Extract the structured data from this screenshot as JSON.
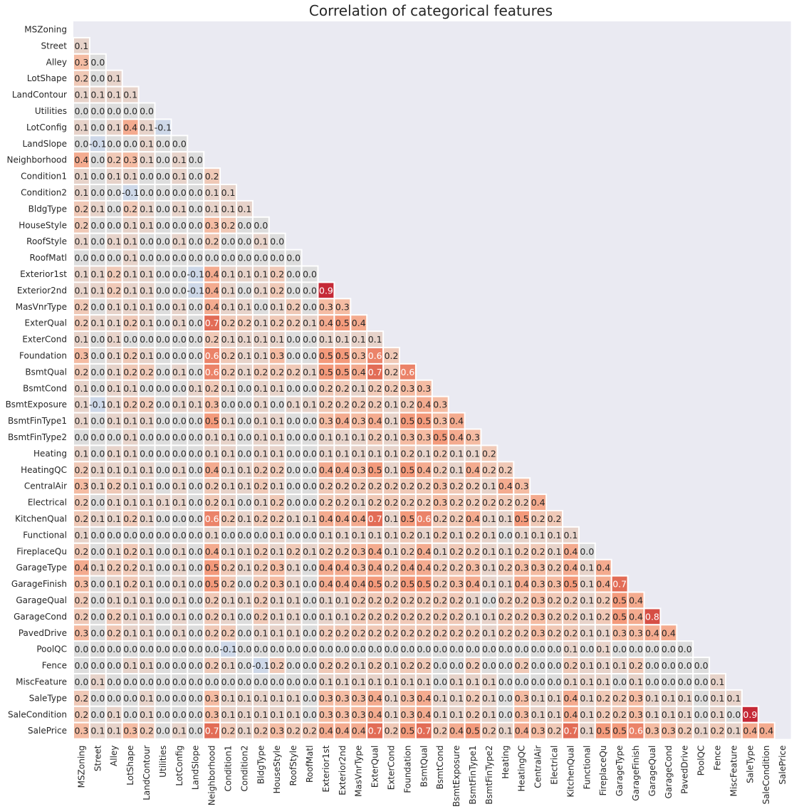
{
  "chart_data": {
    "type": "heatmap",
    "title": "Correlation of categorical features",
    "colormap": "coolwarm",
    "value_range": [
      -1,
      1
    ],
    "mask": "upper-triangle-including-diagonal",
    "colorbar": false,
    "background_color": "#eaeaf2",
    "cell_border_color": "#ffffff",
    "labels": [
      "MSZoning",
      "Street",
      "Alley",
      "LotShape",
      "LandContour",
      "Utilities",
      "LotConfig",
      "LandSlope",
      "Neighborhood",
      "Condition1",
      "Condition2",
      "BldgType",
      "HouseStyle",
      "RoofStyle",
      "RoofMatl",
      "Exterior1st",
      "Exterior2nd",
      "MasVnrType",
      "ExterQual",
      "ExterCond",
      "Foundation",
      "BsmtQual",
      "BsmtCond",
      "BsmtExposure",
      "BsmtFinType1",
      "BsmtFinType2",
      "Heating",
      "HeatingQC",
      "CentralAir",
      "Electrical",
      "KitchenQual",
      "Functional",
      "FireplaceQu",
      "GarageType",
      "GarageFinish",
      "GarageQual",
      "GarageCond",
      "PavedDrive",
      "PoolQC",
      "Fence",
      "MiscFeature",
      "SaleType",
      "SaleCondition",
      "SalePrice"
    ],
    "rows": [
      [],
      [
        0.1
      ],
      [
        0.3,
        -0.0
      ],
      [
        0.2,
        0.0,
        0.1
      ],
      [
        0.1,
        0.1,
        0.1,
        0.1
      ],
      [
        -0.0,
        -0.0,
        -0.0,
        -0.0,
        0.0
      ],
      [
        0.1,
        0.0,
        0.1,
        0.4,
        0.1,
        -0.1
      ],
      [
        -0.0,
        -0.1,
        0.0,
        0.0,
        0.1,
        0.0,
        -0.0
      ],
      [
        0.4,
        0.0,
        0.2,
        0.3,
        0.1,
        -0.0,
        0.1,
        -0.0
      ],
      [
        0.1,
        -0.0,
        0.1,
        0.1,
        0.0,
        -0.0,
        0.1,
        -0.0,
        0.2
      ],
      [
        0.1,
        -0.0,
        -0.0,
        -0.1,
        -0.0,
        -0.0,
        -0.0,
        -0.0,
        0.1,
        0.1
      ],
      [
        0.2,
        0.1,
        0.0,
        0.2,
        0.1,
        0.0,
        0.1,
        0.0,
        0.1,
        0.1,
        0.1
      ],
      [
        0.2,
        0.0,
        0.0,
        0.1,
        0.1,
        0.0,
        0.0,
        0.0,
        0.3,
        0.2,
        0.0,
        -0.0
      ],
      [
        0.1,
        -0.0,
        0.1,
        0.1,
        0.0,
        0.0,
        0.1,
        -0.0,
        0.2,
        0.0,
        0.0,
        0.1,
        0.0
      ],
      [
        0.0,
        0.0,
        0.0,
        0.1,
        0.0,
        0.0,
        -0.0,
        0.0,
        0.0,
        -0.0,
        0.0,
        0.0,
        0.0,
        0.0
      ],
      [
        0.1,
        0.1,
        0.2,
        0.1,
        0.1,
        0.0,
        0.0,
        -0.1,
        0.4,
        0.1,
        0.1,
        0.1,
        0.2,
        0.0,
        -0.0
      ],
      [
        0.1,
        0.1,
        0.2,
        0.1,
        0.1,
        0.0,
        0.0,
        -0.1,
        0.4,
        0.1,
        0.0,
        0.1,
        0.2,
        0.0,
        -0.0,
        0.9
      ],
      [
        0.2,
        0.0,
        0.1,
        0.1,
        0.1,
        -0.0,
        0.1,
        -0.0,
        0.4,
        0.1,
        0.1,
        -0.0,
        0.1,
        0.2,
        -0.0,
        0.3,
        0.3
      ],
      [
        0.2,
        0.1,
        0.1,
        0.2,
        0.1,
        0.0,
        0.1,
        -0.0,
        0.7,
        0.2,
        0.2,
        0.1,
        0.2,
        0.2,
        0.1,
        0.4,
        0.5,
        0.4
      ],
      [
        0.1,
        -0.0,
        0.1,
        0.0,
        0.0,
        -0.0,
        0.0,
        0.0,
        0.2,
        0.1,
        0.1,
        0.1,
        0.1,
        0.0,
        0.0,
        0.1,
        0.1,
        0.1,
        0.1
      ],
      [
        0.3,
        0.0,
        0.1,
        0.2,
        0.1,
        0.0,
        0.0,
        -0.0,
        0.6,
        0.2,
        0.1,
        0.1,
        0.3,
        0.0,
        -0.0,
        0.5,
        0.5,
        0.3,
        0.6,
        0.2
      ],
      [
        0.2,
        0.0,
        0.1,
        0.2,
        0.2,
        0.0,
        0.1,
        0.0,
        0.6,
        0.2,
        0.1,
        0.2,
        0.2,
        0.2,
        0.1,
        0.5,
        0.5,
        0.4,
        0.7,
        0.2,
        0.6
      ],
      [
        0.1,
        -0.0,
        0.1,
        0.1,
        0.0,
        -0.0,
        0.0,
        0.1,
        0.2,
        0.1,
        0.0,
        0.1,
        0.1,
        -0.0,
        0.0,
        0.2,
        0.2,
        0.1,
        0.2,
        0.2,
        0.3,
        0.3
      ],
      [
        0.1,
        -0.1,
        0.1,
        0.2,
        0.2,
        0.0,
        0.1,
        0.1,
        0.3,
        0.0,
        0.0,
        0.1,
        -0.0,
        0.1,
        0.1,
        0.2,
        0.2,
        0.2,
        0.2,
        0.1,
        0.2,
        0.4,
        0.3
      ],
      [
        0.1,
        0.0,
        0.1,
        0.1,
        0.1,
        -0.0,
        0.0,
        0.0,
        0.5,
        0.1,
        0.0,
        0.1,
        0.1,
        0.0,
        0.0,
        0.3,
        0.4,
        0.3,
        0.4,
        0.1,
        0.5,
        0.5,
        0.3,
        0.4
      ],
      [
        -0.0,
        -0.0,
        -0.0,
        0.1,
        0.0,
        0.0,
        0.0,
        -0.0,
        0.1,
        0.1,
        0.0,
        0.1,
        0.1,
        -0.0,
        -0.0,
        0.1,
        0.1,
        0.1,
        0.2,
        0.1,
        0.3,
        0.3,
        0.5,
        0.4,
        0.3
      ],
      [
        0.1,
        -0.0,
        0.1,
        0.1,
        0.0,
        -0.0,
        0.0,
        -0.0,
        0.1,
        0.1,
        -0.0,
        0.1,
        0.1,
        0.0,
        0.0,
        0.1,
        0.1,
        0.1,
        0.1,
        0.1,
        0.2,
        0.1,
        0.2,
        0.1,
        0.1,
        0.2
      ],
      [
        0.2,
        0.1,
        0.1,
        0.1,
        0.1,
        0.0,
        0.1,
        -0.0,
        0.4,
        0.1,
        0.1,
        0.2,
        0.2,
        0.0,
        -0.0,
        0.4,
        0.4,
        0.3,
        0.5,
        0.1,
        0.5,
        0.4,
        0.2,
        0.1,
        0.4,
        0.2,
        0.2
      ],
      [
        0.3,
        0.1,
        0.2,
        0.1,
        0.1,
        -0.0,
        0.1,
        -0.0,
        0.2,
        0.1,
        0.1,
        0.2,
        0.1,
        0.0,
        0.0,
        0.2,
        0.2,
        0.2,
        0.2,
        0.2,
        0.2,
        0.2,
        0.3,
        0.2,
        0.2,
        0.1,
        0.4,
        0.3
      ],
      [
        0.2,
        0.0,
        0.1,
        0.1,
        0.1,
        0.1,
        0.1,
        -0.0,
        0.2,
        0.1,
        0.0,
        0.1,
        0.2,
        0.0,
        0.0,
        0.2,
        0.2,
        0.1,
        0.2,
        0.2,
        0.2,
        0.2,
        0.3,
        0.2,
        0.2,
        0.2,
        0.2,
        0.2,
        0.4
      ],
      [
        0.2,
        0.1,
        0.1,
        0.2,
        0.1,
        -0.0,
        0.0,
        -0.0,
        0.6,
        0.2,
        0.1,
        0.2,
        0.2,
        0.1,
        0.1,
        0.4,
        0.4,
        0.4,
        0.7,
        0.1,
        0.5,
        0.6,
        0.2,
        0.2,
        0.4,
        0.1,
        0.1,
        0.5,
        0.2,
        0.2
      ],
      [
        0.1,
        -0.0,
        0.0,
        0.0,
        0.0,
        -0.0,
        -0.0,
        -0.0,
        0.1,
        0.0,
        -0.0,
        -0.0,
        0.1,
        -0.0,
        0.0,
        0.1,
        0.1,
        0.1,
        0.1,
        0.1,
        0.2,
        0.1,
        0.2,
        0.1,
        0.2,
        0.1,
        0.0,
        0.1,
        0.1,
        0.1,
        0.1
      ],
      [
        0.2,
        0.0,
        0.1,
        0.2,
        0.1,
        -0.0,
        0.1,
        0.0,
        0.4,
        0.1,
        0.1,
        0.2,
        0.1,
        0.2,
        0.1,
        0.2,
        0.2,
        0.3,
        0.4,
        0.1,
        0.2,
        0.4,
        0.1,
        0.2,
        0.2,
        0.1,
        0.1,
        0.2,
        0.2,
        0.1,
        0.4,
        0.0
      ],
      [
        0.4,
        0.1,
        0.2,
        0.2,
        0.1,
        0.0,
        0.1,
        -0.0,
        0.5,
        0.2,
        0.1,
        0.2,
        0.3,
        0.1,
        0.0,
        0.4,
        0.4,
        0.3,
        0.4,
        0.2,
        0.4,
        0.4,
        0.2,
        0.2,
        0.3,
        0.1,
        0.2,
        0.3,
        0.3,
        0.2,
        0.4,
        0.1,
        0.4
      ],
      [
        0.3,
        0.0,
        0.1,
        0.2,
        0.1,
        -0.0,
        0.1,
        -0.0,
        0.5,
        0.2,
        0.0,
        0.2,
        0.3,
        0.1,
        0.0,
        0.4,
        0.4,
        0.4,
        0.5,
        0.2,
        0.5,
        0.5,
        0.2,
        0.3,
        0.4,
        0.1,
        0.1,
        0.4,
        0.3,
        0.3,
        0.5,
        0.1,
        0.4,
        0.7
      ],
      [
        0.2,
        0.0,
        0.1,
        0.1,
        0.1,
        -0.0,
        0.1,
        -0.0,
        0.2,
        0.1,
        0.1,
        0.2,
        0.1,
        0.1,
        0.0,
        0.1,
        0.1,
        0.2,
        0.2,
        0.2,
        0.2,
        0.2,
        0.2,
        0.2,
        0.1,
        0.0,
        0.2,
        0.2,
        0.3,
        0.2,
        0.2,
        0.1,
        0.2,
        0.5,
        0.4
      ],
      [
        0.2,
        0.0,
        0.2,
        0.1,
        0.1,
        -0.0,
        0.1,
        -0.0,
        0.2,
        0.1,
        0.0,
        0.2,
        0.1,
        0.1,
        0.0,
        0.1,
        0.1,
        0.2,
        0.2,
        0.2,
        0.2,
        0.2,
        0.2,
        0.2,
        0.1,
        0.1,
        0.2,
        0.2,
        0.3,
        0.2,
        0.2,
        0.1,
        0.2,
        0.5,
        0.4,
        0.8
      ],
      [
        0.3,
        0.0,
        0.2,
        0.1,
        0.1,
        -0.0,
        0.1,
        -0.0,
        0.2,
        0.2,
        0.0,
        0.1,
        0.1,
        0.1,
        0.0,
        0.2,
        0.2,
        0.2,
        0.2,
        0.2,
        0.2,
        0.2,
        0.2,
        0.2,
        0.2,
        0.1,
        0.2,
        0.2,
        0.3,
        0.2,
        0.2,
        0.1,
        0.1,
        0.3,
        0.3,
        0.4,
        0.4
      ],
      [
        0.0,
        0.0,
        0.0,
        0.0,
        -0.0,
        -0.0,
        0.0,
        -0.0,
        -0.0,
        -0.1,
        0.0,
        0.0,
        0.0,
        0.0,
        -0.0,
        -0.0,
        -0.0,
        -0.0,
        -0.0,
        -0.0,
        0.0,
        0.0,
        0.0,
        0.0,
        0.0,
        -0.0,
        -0.0,
        -0.0,
        0.0,
        0.0,
        0.1,
        0.0,
        0.1,
        -0.0,
        0.0,
        0.0,
        0.0,
        0.0
      ],
      [
        0.0,
        -0.0,
        0.0,
        0.1,
        0.1,
        -0.0,
        0.0,
        -0.0,
        0.2,
        0.1,
        0.0,
        -0.1,
        0.2,
        0.0,
        -0.0,
        0.2,
        0.2,
        0.1,
        0.2,
        0.1,
        0.2,
        0.2,
        -0.0,
        0.0,
        0.2,
        0.0,
        0.0,
        0.2,
        -0.0,
        -0.0,
        0.2,
        0.1,
        0.1,
        0.1,
        0.2,
        0.0,
        0.0,
        0.0,
        -0.0
      ],
      [
        0.0,
        0.1,
        0.0,
        0.0,
        0.0,
        -0.0,
        -0.0,
        -0.0,
        -0.0,
        0.0,
        0.0,
        0.0,
        -0.0,
        -0.0,
        0.0,
        0.1,
        0.1,
        0.1,
        0.1,
        0.1,
        0.1,
        0.1,
        0.0,
        0.1,
        0.1,
        0.1,
        -0.0,
        0.0,
        -0.0,
        -0.0,
        0.1,
        0.1,
        0.1,
        0.0,
        0.1,
        0.0,
        0.0,
        0.0,
        0.0,
        0.1
      ],
      [
        0.2,
        0.0,
        0.0,
        0.0,
        0.1,
        0.0,
        -0.0,
        0.0,
        0.3,
        0.1,
        0.1,
        0.1,
        0.1,
        0.1,
        -0.0,
        0.3,
        0.3,
        0.3,
        0.4,
        0.1,
        0.3,
        0.4,
        0.1,
        0.1,
        0.2,
        0.1,
        0.0,
        0.3,
        0.1,
        0.1,
        0.4,
        0.1,
        0.2,
        0.2,
        0.3,
        0.1,
        0.1,
        0.1,
        -0.0,
        0.1,
        0.1
      ],
      [
        0.2,
        0.0,
        0.1,
        0.0,
        0.1,
        0.0,
        -0.0,
        0.0,
        0.3,
        0.1,
        0.1,
        0.1,
        0.1,
        0.1,
        -0.0,
        0.3,
        0.3,
        0.3,
        0.4,
        0.1,
        0.3,
        0.4,
        0.1,
        0.1,
        0.2,
        0.1,
        0.0,
        0.3,
        0.1,
        0.1,
        0.4,
        0.1,
        0.2,
        0.2,
        0.3,
        0.1,
        0.1,
        0.1,
        -0.0,
        0.1,
        0.0,
        0.9
      ],
      [
        0.3,
        0.1,
        0.1,
        0.3,
        0.2,
        0.0,
        0.1,
        0.0,
        0.7,
        0.2,
        0.1,
        0.2,
        0.3,
        0.2,
        0.2,
        0.4,
        0.4,
        0.4,
        0.7,
        0.2,
        0.5,
        0.7,
        0.2,
        0.4,
        0.5,
        0.2,
        0.1,
        0.4,
        0.3,
        0.2,
        0.7,
        0.1,
        0.5,
        0.5,
        0.6,
        0.3,
        0.3,
        0.2,
        0.1,
        0.2,
        0.1,
        0.4,
        0.4
      ]
    ]
  }
}
